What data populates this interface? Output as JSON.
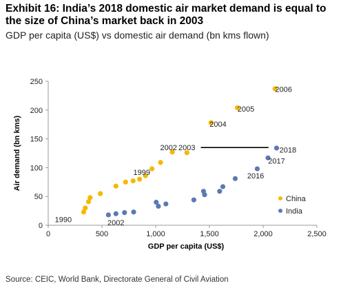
{
  "header": {
    "title": "Exhibit 16: India’s 2018 domestic air market demand is equal to the size of China’s market back in 2003",
    "subtitle": "GDP per capita (US$) vs domestic air demand (bn kms flown)"
  },
  "footer": {
    "source": "Source: CEIC, World Bank, Directorate General of Civil Aviation"
  },
  "colors": {
    "china": "#F5B800",
    "india": "#5B79B3",
    "axis": "#999999"
  },
  "chart_data": {
    "type": "scatter",
    "xlabel": "GDP per capita (US$)",
    "ylabel": "Air demand (bn kms)",
    "xlim": [
      0,
      2500
    ],
    "ylim": [
      0,
      250
    ],
    "xticks": [
      "0",
      "500",
      "1,000",
      "1,500",
      "2,000",
      "2,500"
    ],
    "yticks": [
      "0",
      "50",
      "100",
      "150",
      "200",
      "250"
    ],
    "grid": false,
    "legend_position": "bottom-right",
    "series": [
      {
        "name": "China",
        "points": [
          [
            330,
            23
          ],
          [
            345,
            30
          ],
          [
            375,
            41
          ],
          [
            390,
            48
          ],
          [
            485,
            55
          ],
          [
            630,
            68
          ],
          [
            720,
            75
          ],
          [
            790,
            77
          ],
          [
            850,
            80
          ],
          [
            905,
            86
          ],
          [
            965,
            98
          ],
          [
            1045,
            109
          ],
          [
            1155,
            127
          ],
          [
            1290,
            126
          ],
          [
            1515,
            178
          ],
          [
            1760,
            204
          ],
          [
            2110,
            237
          ]
        ]
      },
      {
        "name": "India",
        "points": [
          [
            560,
            18
          ],
          [
            630,
            20
          ],
          [
            710,
            22
          ],
          [
            795,
            23
          ],
          [
            1005,
            40
          ],
          [
            1025,
            33
          ],
          [
            1095,
            37
          ],
          [
            1355,
            44
          ],
          [
            1445,
            59
          ],
          [
            1455,
            53
          ],
          [
            1595,
            59
          ],
          [
            1625,
            67
          ],
          [
            1740,
            81
          ],
          [
            1945,
            98
          ],
          [
            2045,
            117
          ],
          [
            2125,
            134
          ]
        ]
      }
    ],
    "annotations": {
      "china": [
        {
          "label": "1990",
          "x": 140,
          "y": 10
        },
        {
          "label": "1999",
          "x": 870,
          "y": 92
        },
        {
          "label": "2002",
          "x": 1120,
          "y": 135
        },
        {
          "label": "2003",
          "x": 1290,
          "y": 135
        },
        {
          "label": "2004",
          "x": 1580,
          "y": 176
        },
        {
          "label": "2005",
          "x": 1840,
          "y": 202
        },
        {
          "label": "2006",
          "x": 2190,
          "y": 236
        }
      ],
      "india": [
        {
          "label": "2002",
          "x": 630,
          "y": 5
        },
        {
          "label": "2016",
          "x": 1930,
          "y": 86
        },
        {
          "label": "2017",
          "x": 2125,
          "y": 112
        },
        {
          "label": "2018",
          "x": 2230,
          "y": 131
        }
      ]
    },
    "reference_line": {
      "x_start": 1420,
      "x_end": 2050,
      "y": 135
    }
  }
}
